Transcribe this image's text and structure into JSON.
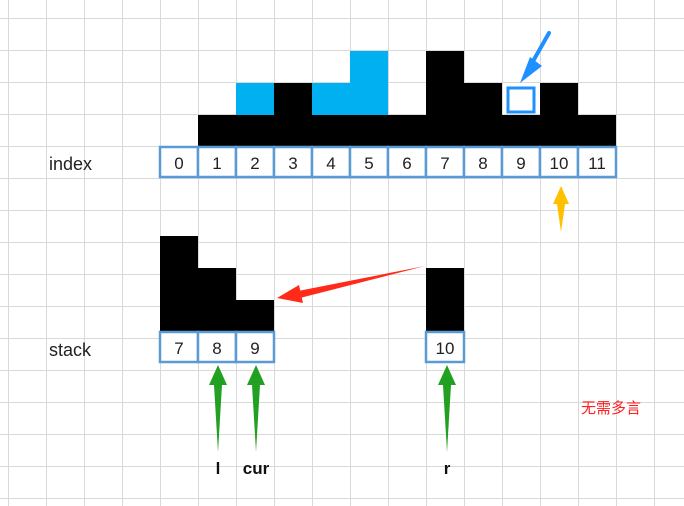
{
  "index_label": "index",
  "stack_label": "stack",
  "index_numbers": [
    "0",
    "1",
    "2",
    "3",
    "4",
    "5",
    "6",
    "7",
    "8",
    "9",
    "10",
    "11"
  ],
  "bar_heights": [
    0,
    1,
    1,
    2,
    1,
    1,
    1,
    3,
    2,
    1,
    2,
    1
  ],
  "water_levels": [
    0,
    0,
    1,
    0,
    1,
    2,
    0,
    0,
    0,
    0,
    0,
    0
  ],
  "highlight": {
    "index": 9,
    "level": 1
  },
  "stack_items": [
    "7",
    "8",
    "9"
  ],
  "stack_heights": [
    3,
    2,
    1
  ],
  "right_item": "10",
  "right_height": 2,
  "pointer_labels": {
    "l": "l",
    "cur": "cur",
    "r": "r"
  },
  "note": "无需多言",
  "colors": {
    "bar": "#000000",
    "water": "#00b0f0",
    "cell_border": "#5b9bd5",
    "blue_arrow": "#1e90ff",
    "orange_arrow": "#ffc000",
    "red_arrow": "#ff2a1a",
    "green_arrow": "#22a022",
    "note": "#ff2020",
    "text": "#222222"
  }
}
